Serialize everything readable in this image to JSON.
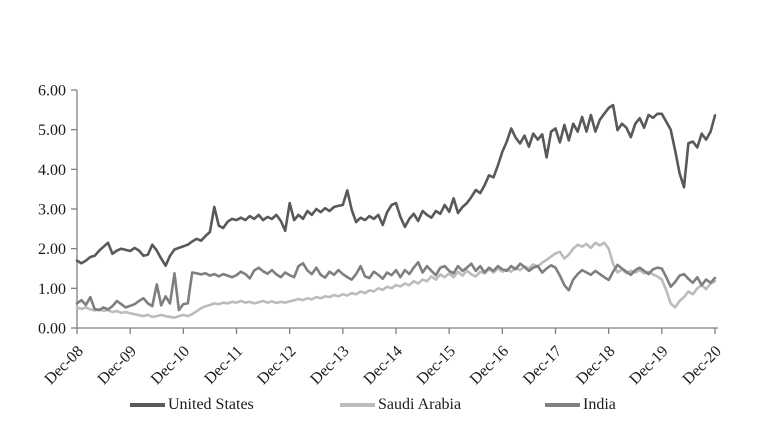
{
  "chart_data": {
    "type": "line",
    "title": "",
    "xlabel": "",
    "ylabel": "",
    "ylim": [
      0,
      6
    ],
    "grid": false,
    "legend_position": "bottom",
    "axis_color": "#808080",
    "text_color": "#1a1a1a",
    "y_tick_labels": [
      "0.00",
      "1.00",
      "2.00",
      "3.00",
      "4.00",
      "5.00",
      "6.00"
    ],
    "x_tick_labels": [
      "Dec-08",
      "Dec-09",
      "Dec-10",
      "Dec-11",
      "Dec-12",
      "Dec-13",
      "Dec-14",
      "Dec-15",
      "Dec-16",
      "Dec-17",
      "Dec-18",
      "Dec-19",
      "Dec-20"
    ],
    "x_frequency": "monthly",
    "series": [
      {
        "name": "United States",
        "color": "#595959",
        "values": [
          1.7,
          1.63,
          1.7,
          1.79,
          1.82,
          1.95,
          2.05,
          2.15,
          1.87,
          1.95,
          2.0,
          1.97,
          1.94,
          2.02,
          1.95,
          1.82,
          1.85,
          2.1,
          1.95,
          1.75,
          1.57,
          1.82,
          1.98,
          2.02,
          2.06,
          2.1,
          2.18,
          2.25,
          2.2,
          2.32,
          2.42,
          3.05,
          2.58,
          2.52,
          2.68,
          2.75,
          2.72,
          2.78,
          2.72,
          2.82,
          2.75,
          2.85,
          2.72,
          2.8,
          2.75,
          2.85,
          2.7,
          2.45,
          3.15,
          2.72,
          2.85,
          2.75,
          2.95,
          2.85,
          3.0,
          2.92,
          3.02,
          2.95,
          3.05,
          3.08,
          3.1,
          3.47,
          2.98,
          2.67,
          2.78,
          2.72,
          2.82,
          2.75,
          2.85,
          2.6,
          2.92,
          3.1,
          3.15,
          2.8,
          2.55,
          2.75,
          2.88,
          2.7,
          2.95,
          2.85,
          2.78,
          2.95,
          2.88,
          3.1,
          2.93,
          3.27,
          2.9,
          3.05,
          3.15,
          3.3,
          3.48,
          3.4,
          3.6,
          3.85,
          3.8,
          4.1,
          4.44,
          4.7,
          5.03,
          4.8,
          4.65,
          4.85,
          4.57,
          4.9,
          4.75,
          4.88,
          4.3,
          4.95,
          5.03,
          4.68,
          5.12,
          4.73,
          5.15,
          4.95,
          5.32,
          4.95,
          5.37,
          4.95,
          5.25,
          5.4,
          5.55,
          5.62,
          4.99,
          5.15,
          5.05,
          4.81,
          5.15,
          5.29,
          5.05,
          5.37,
          5.3,
          5.4,
          5.4,
          5.2,
          5.0,
          4.48,
          3.9,
          3.55,
          4.66,
          4.7,
          4.55,
          4.9,
          4.75,
          4.95,
          5.36
        ]
      },
      {
        "name": "Saudi Arabia",
        "color": "#bcbcbc",
        "values": [
          0.52,
          0.48,
          0.52,
          0.47,
          0.44,
          0.47,
          0.43,
          0.45,
          0.4,
          0.43,
          0.38,
          0.4,
          0.37,
          0.35,
          0.32,
          0.3,
          0.33,
          0.28,
          0.3,
          0.33,
          0.3,
          0.28,
          0.26,
          0.3,
          0.33,
          0.3,
          0.35,
          0.42,
          0.5,
          0.55,
          0.58,
          0.62,
          0.6,
          0.64,
          0.62,
          0.66,
          0.64,
          0.68,
          0.64,
          0.66,
          0.62,
          0.65,
          0.68,
          0.64,
          0.67,
          0.63,
          0.66,
          0.64,
          0.67,
          0.7,
          0.73,
          0.7,
          0.75,
          0.72,
          0.78,
          0.75,
          0.8,
          0.78,
          0.83,
          0.8,
          0.85,
          0.82,
          0.88,
          0.85,
          0.92,
          0.88,
          0.95,
          0.92,
          1.0,
          0.96,
          1.04,
          1.0,
          1.08,
          1.05,
          1.12,
          1.08,
          1.18,
          1.12,
          1.22,
          1.18,
          1.3,
          1.22,
          1.35,
          1.28,
          1.38,
          1.28,
          1.42,
          1.32,
          1.45,
          1.35,
          1.3,
          1.42,
          1.38,
          1.48,
          1.4,
          1.5,
          1.42,
          1.48,
          1.42,
          1.52,
          1.46,
          1.55,
          1.5,
          1.6,
          1.55,
          1.65,
          1.72,
          1.8,
          1.88,
          1.92,
          1.75,
          1.85,
          2.0,
          2.1,
          2.05,
          2.12,
          2.02,
          2.15,
          2.08,
          2.15,
          2.0,
          1.62,
          1.4,
          1.48,
          1.38,
          1.44,
          1.4,
          1.46,
          1.38,
          1.42,
          1.35,
          1.3,
          1.22,
          0.95,
          0.62,
          0.52,
          0.68,
          0.78,
          0.92,
          0.85,
          1.0,
          1.08,
          0.98,
          1.12,
          1.18
        ]
      },
      {
        "name": "India",
        "color": "#7f7f7f",
        "values": [
          0.62,
          0.7,
          0.58,
          0.78,
          0.48,
          0.45,
          0.52,
          0.47,
          0.55,
          0.68,
          0.6,
          0.52,
          0.56,
          0.6,
          0.68,
          0.75,
          0.62,
          0.55,
          1.1,
          0.57,
          0.8,
          0.62,
          1.38,
          0.45,
          0.6,
          0.62,
          1.4,
          1.38,
          1.35,
          1.38,
          1.32,
          1.36,
          1.3,
          1.36,
          1.32,
          1.28,
          1.33,
          1.42,
          1.36,
          1.25,
          1.45,
          1.52,
          1.43,
          1.37,
          1.46,
          1.35,
          1.28,
          1.4,
          1.33,
          1.28,
          1.56,
          1.63,
          1.45,
          1.36,
          1.52,
          1.34,
          1.27,
          1.42,
          1.34,
          1.46,
          1.36,
          1.28,
          1.22,
          1.36,
          1.56,
          1.3,
          1.26,
          1.42,
          1.34,
          1.24,
          1.4,
          1.33,
          1.46,
          1.28,
          1.46,
          1.36,
          1.52,
          1.66,
          1.4,
          1.56,
          1.44,
          1.33,
          1.52,
          1.56,
          1.44,
          1.38,
          1.56,
          1.44,
          1.52,
          1.62,
          1.44,
          1.56,
          1.4,
          1.52,
          1.44,
          1.56,
          1.48,
          1.44,
          1.56,
          1.48,
          1.62,
          1.54,
          1.44,
          1.52,
          1.56,
          1.4,
          1.5,
          1.58,
          1.52,
          1.32,
          1.08,
          0.95,
          1.22,
          1.36,
          1.46,
          1.4,
          1.34,
          1.44,
          1.36,
          1.28,
          1.21,
          1.42,
          1.59,
          1.5,
          1.42,
          1.34,
          1.46,
          1.52,
          1.44,
          1.36,
          1.48,
          1.52,
          1.5,
          1.28,
          1.04,
          1.16,
          1.32,
          1.36,
          1.24,
          1.14,
          1.28,
          1.08,
          1.22,
          1.14,
          1.26
        ]
      }
    ]
  }
}
